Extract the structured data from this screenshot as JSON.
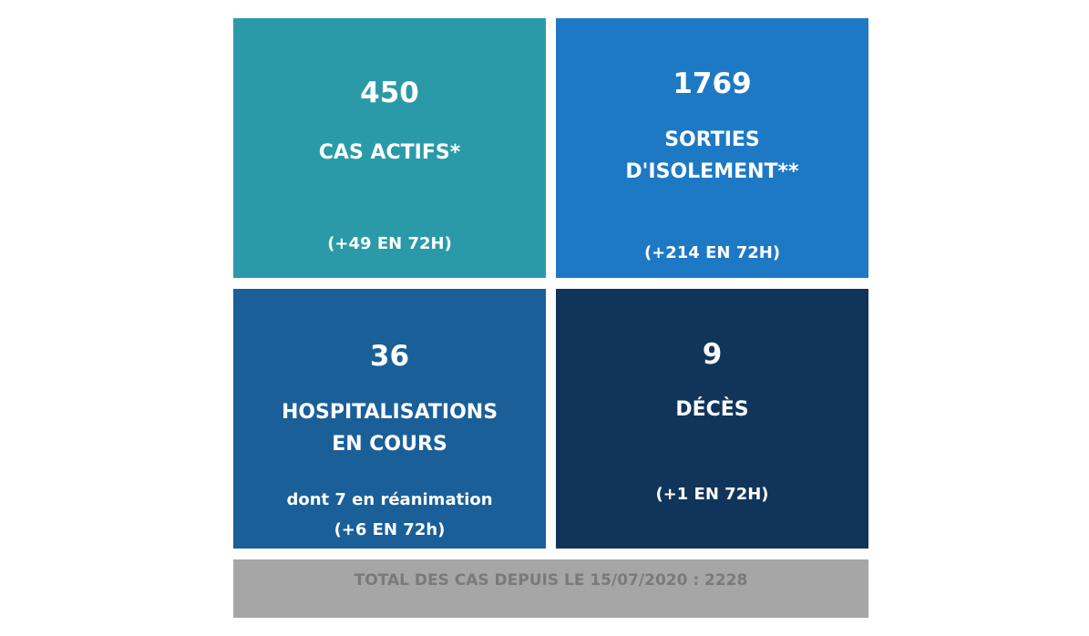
{
  "tiles": {
    "active": {
      "value": "450",
      "label": "CAS ACTIFS*",
      "change": "(+49 EN 72H)",
      "color": "#2a9aa9"
    },
    "isolation": {
      "value": "1769",
      "label": "SORTIES\nD'ISOLEMENT**",
      "change": "(+214 EN 72H)",
      "color": "#1e79c5"
    },
    "hospitalisations": {
      "value": "36",
      "label": "HOSPITALISATIONS\nEN COURS",
      "note": "dont 7 en réanimation",
      "change": "(+6 EN 72h)",
      "color": "#1a5f98"
    },
    "deaths": {
      "value": "9",
      "label": "DÉCÈS",
      "change": "(+1 EN 72H)",
      "color": "#11355a"
    }
  },
  "total": {
    "text": "TOTAL DES CAS DEPUIS LE 15/07/2020 : 2228",
    "color": "#a6a6a6"
  }
}
